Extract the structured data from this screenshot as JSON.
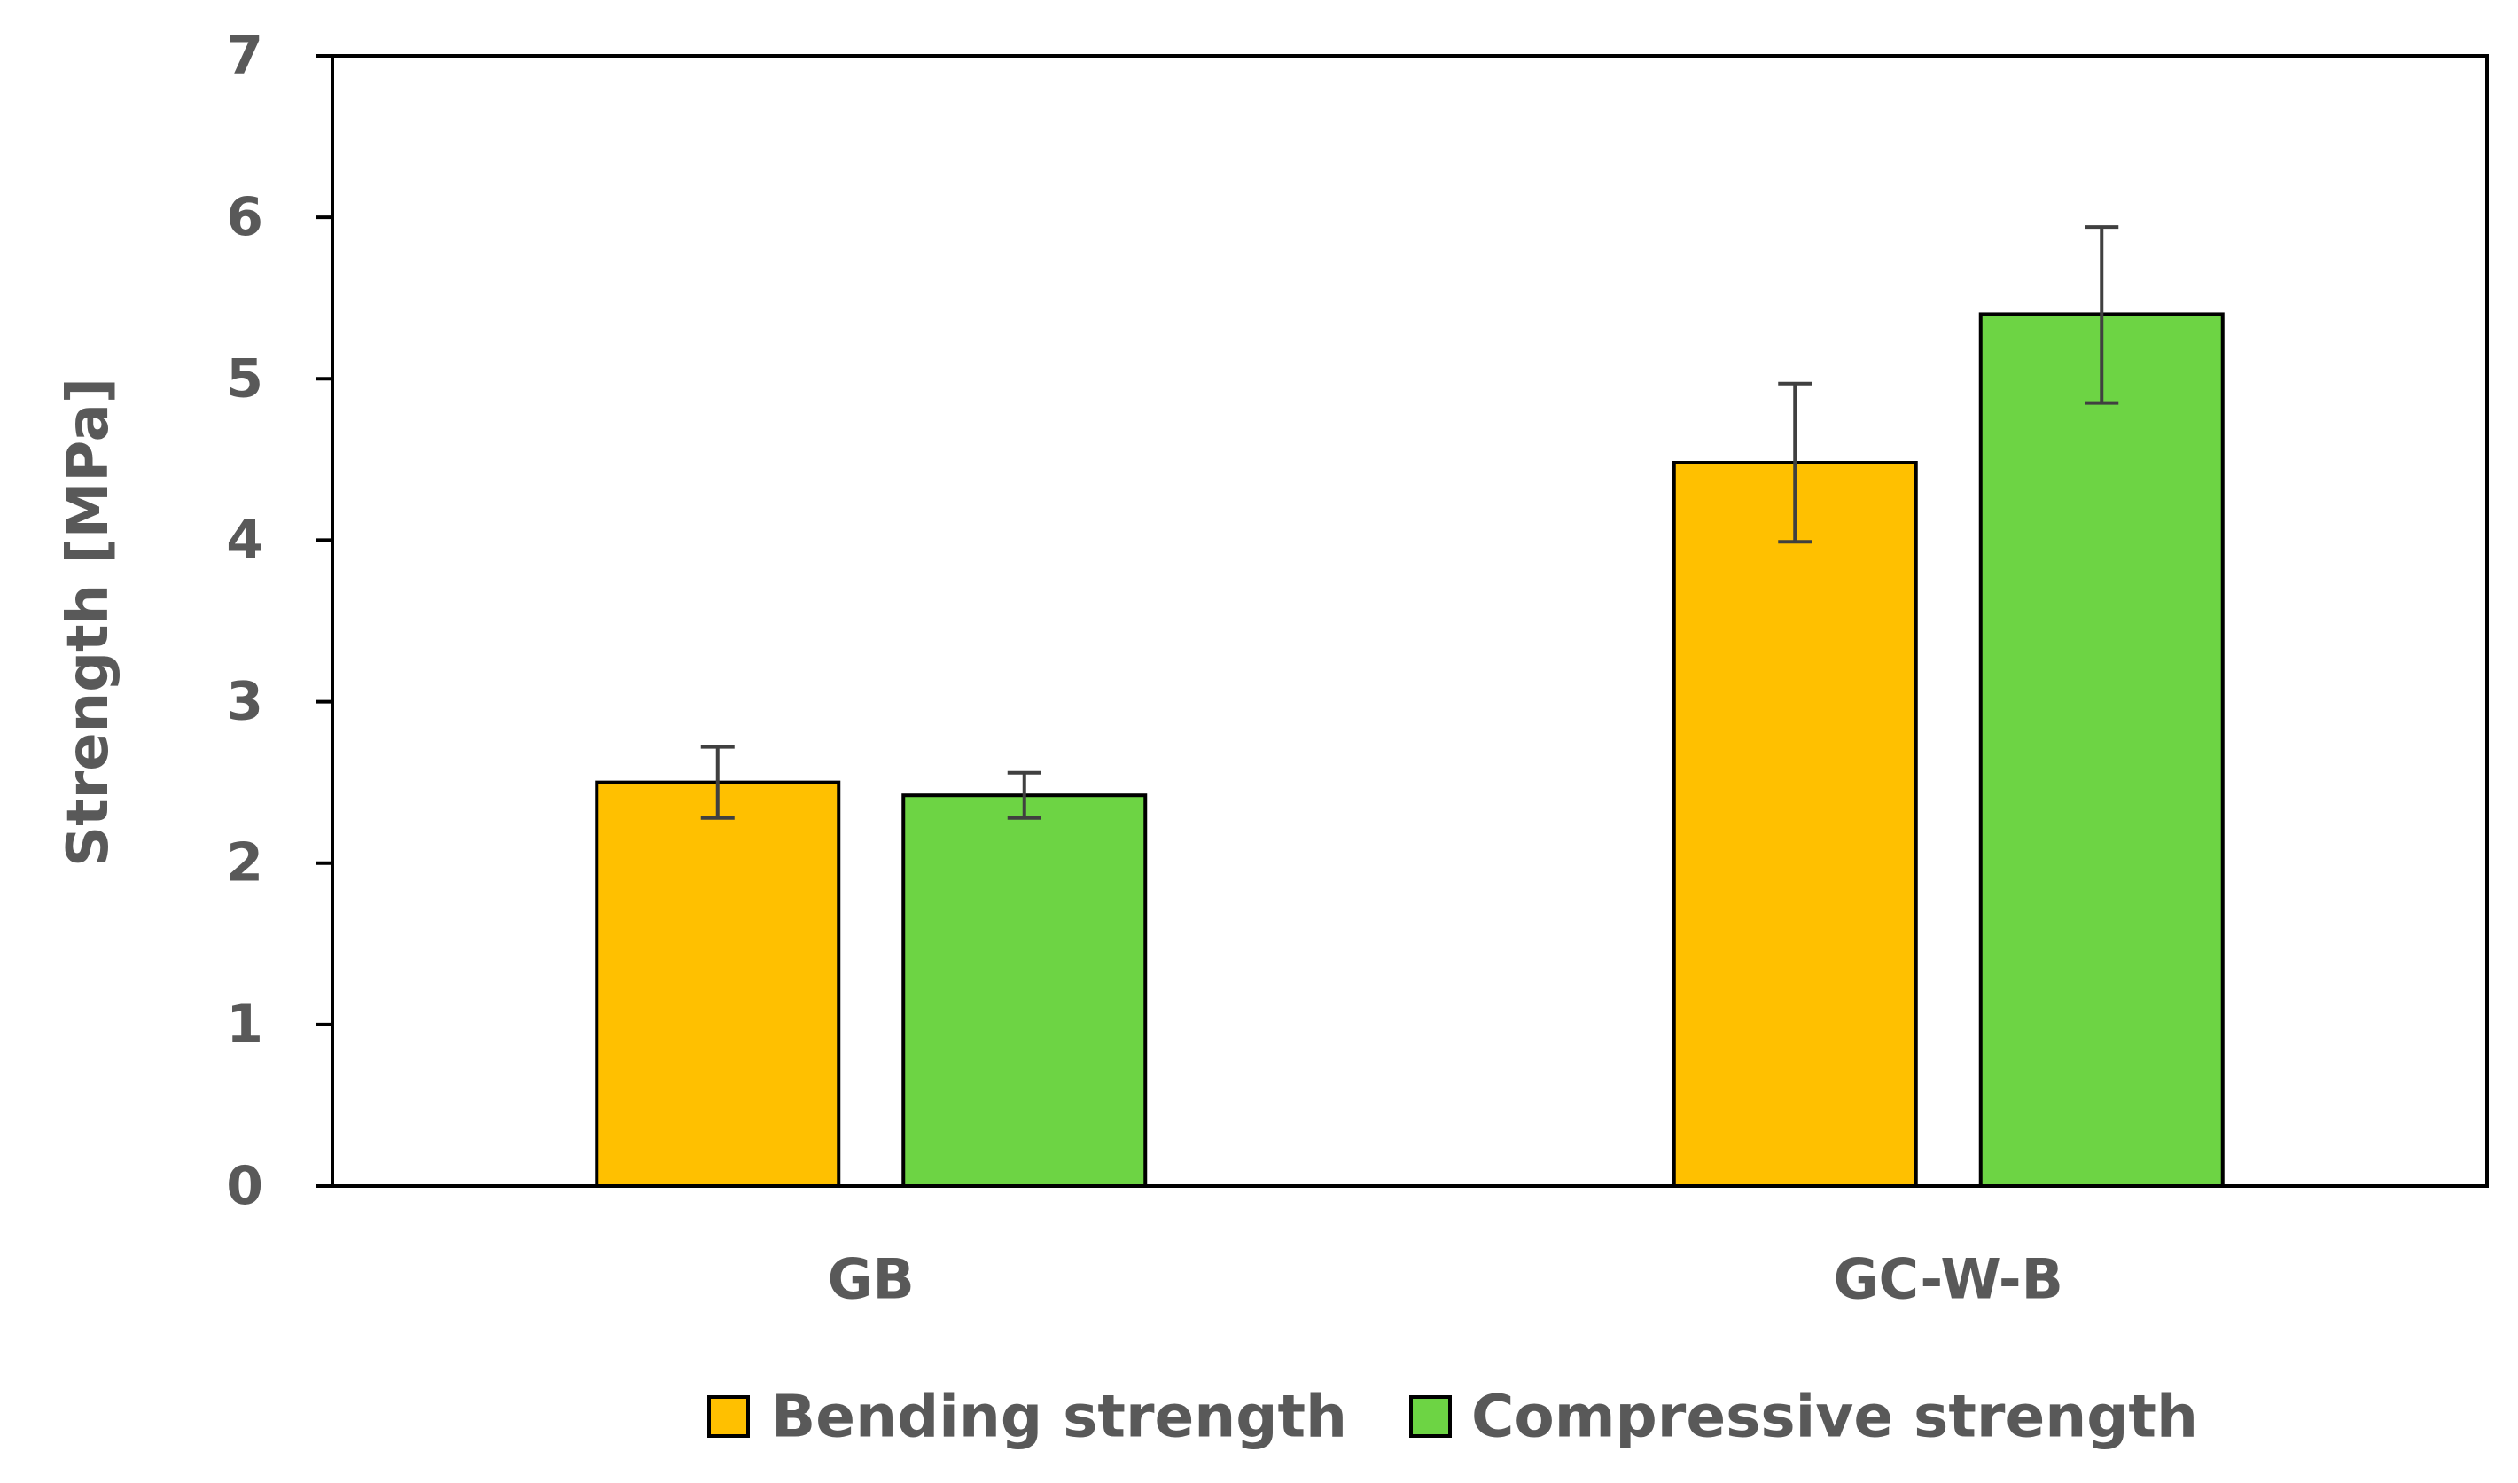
{
  "chart_data": {
    "type": "bar",
    "title": "",
    "xlabel": "",
    "ylabel": "Strength [MPa]",
    "ylim": [
      0,
      7
    ],
    "yticks": [
      0,
      1,
      2,
      3,
      4,
      5,
      6,
      7
    ],
    "ytick_labels": [
      "0",
      "1",
      "2",
      "3",
      "4",
      "5",
      "6",
      "7"
    ],
    "categories": [
      "GB",
      "GC-W-B"
    ],
    "series": [
      {
        "name": "Bending strength",
        "color": "#FFC000",
        "values": [
          2.5,
          4.48
        ],
        "error_low": [
          2.28,
          3.99
        ],
        "error_high": [
          2.72,
          4.97
        ]
      },
      {
        "name": "Compressive strength",
        "color": "#6DD444",
        "values": [
          2.42,
          5.4
        ],
        "error_low": [
          2.28,
          4.85
        ],
        "error_high": [
          2.56,
          5.94
        ]
      }
    ],
    "legend": {
      "position": "bottom-center",
      "items": [
        "Bending strength",
        "Compressive strength"
      ]
    },
    "grid": false,
    "colors": {
      "axis": "#000000",
      "bar_border": "#000000",
      "error_bar": "#404040",
      "text": "#595959"
    }
  }
}
